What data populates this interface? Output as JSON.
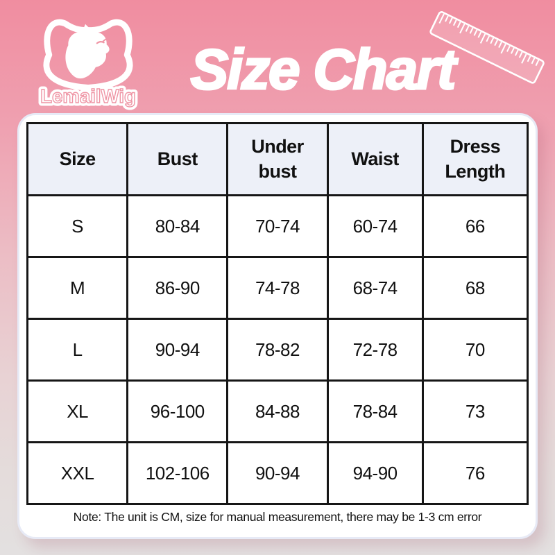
{
  "brand": {
    "logo_text": "LemailWig",
    "logo_icon": "cat-wig-logo-icon"
  },
  "title": "Size Chart",
  "icons": {
    "ruler": "ruler-icon"
  },
  "size_table": {
    "columns": [
      "Size",
      "Bust",
      "Under bust",
      "Waist",
      "Dress Length"
    ],
    "rows": [
      [
        "S",
        "80-84",
        "70-74",
        "60-74",
        "66"
      ],
      [
        "M",
        "86-90",
        "74-78",
        "68-74",
        "68"
      ],
      [
        "L",
        "90-94",
        "78-82",
        "72-78",
        "70"
      ],
      [
        "XL",
        "96-100",
        "84-88",
        "78-84",
        "73"
      ],
      [
        "XXL",
        "102-106",
        "90-94",
        "94-90",
        "76"
      ]
    ]
  },
  "note": "Note: The unit is CM, size for manual measurement, there may be 1-3 cm error",
  "colors": {
    "background_top": "#f08da0",
    "background_bottom": "#e3e0e0",
    "card_bg": "#ffffff",
    "card_edge": "#e7eaf6",
    "header_cell_bg": "#edf0f8",
    "table_border": "#161616",
    "title_color": "#ffffff",
    "text_color": "#111111"
  },
  "chart_data": {
    "type": "table",
    "title": "Size Chart",
    "unit": "CM",
    "columns": [
      "Size",
      "Bust",
      "Under bust",
      "Waist",
      "Dress Length"
    ],
    "rows": [
      [
        "S",
        "80-84",
        "70-74",
        "60-74",
        "66"
      ],
      [
        "M",
        "86-90",
        "74-78",
        "68-74",
        "68"
      ],
      [
        "L",
        "90-94",
        "78-82",
        "72-78",
        "70"
      ],
      [
        "XL",
        "96-100",
        "84-88",
        "78-84",
        "73"
      ],
      [
        "XXL",
        "102-106",
        "90-94",
        "94-90",
        "76"
      ]
    ],
    "note": "Note: The unit is CM, size for manual measurement, there may be 1-3 cm error"
  }
}
